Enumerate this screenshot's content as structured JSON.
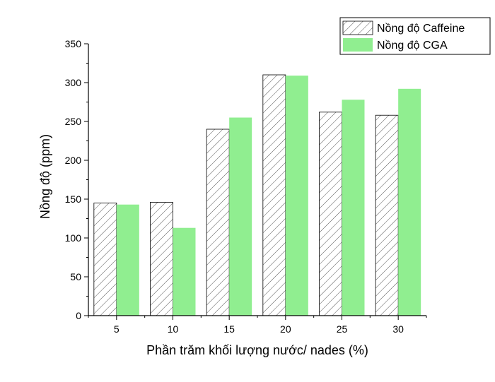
{
  "chart_data": {
    "type": "bar",
    "categories": [
      "5",
      "10",
      "15",
      "20",
      "25",
      "30"
    ],
    "series": [
      {
        "name": "Nồng độ Caffeine",
        "values": [
          145,
          146,
          240,
          310,
          262,
          258
        ],
        "color": "#ffffff",
        "pattern": "hatch"
      },
      {
        "name": "Nồng độ CGA",
        "values": [
          143,
          113,
          255,
          309,
          278,
          292
        ],
        "color": "#90ee90",
        "pattern": "solid"
      }
    ],
    "xlabel": "Phần trăm khối lượng nước/ nades (%)",
    "ylabel": "Nồng độ (ppm)",
    "ylim": [
      0,
      350
    ],
    "yticks": [
      0,
      50,
      100,
      150,
      200,
      250,
      300,
      350
    ],
    "grid": false,
    "legend_position": "top-right"
  }
}
